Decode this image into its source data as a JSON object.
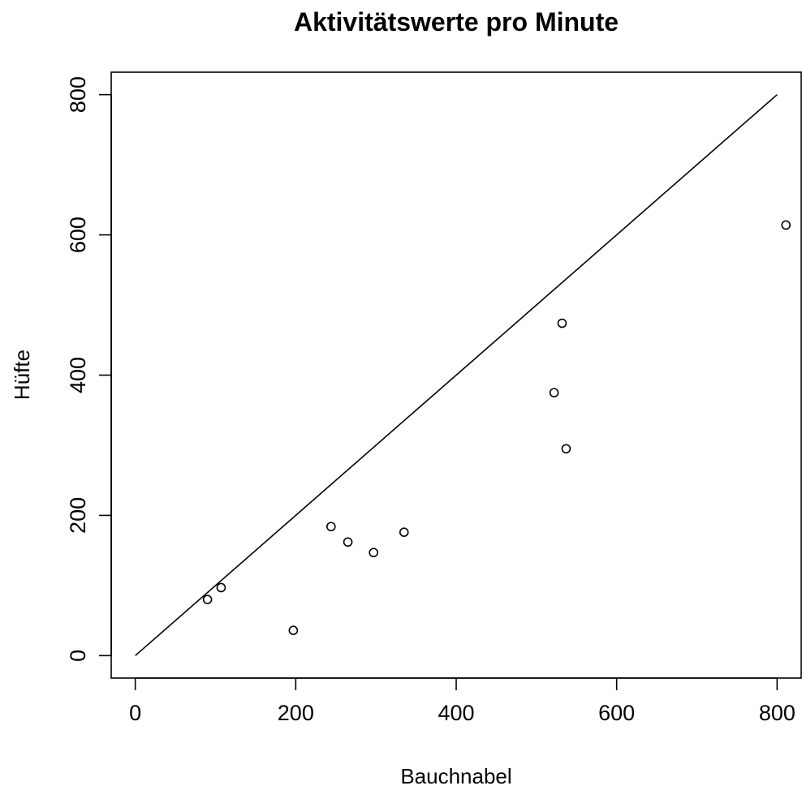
{
  "chart_data": {
    "type": "scatter",
    "title": "Aktivitätswerte pro Minute",
    "xlabel": "Bauchnabel",
    "ylabel": "Hüfte",
    "xlim": [
      -30,
      830
    ],
    "ylim": [
      -32,
      832
    ],
    "xticks": [
      0,
      200,
      400,
      600,
      800
    ],
    "yticks": [
      0,
      200,
      400,
      600,
      800
    ],
    "grid": false,
    "legend": null,
    "reference_line": {
      "from": [
        0,
        0
      ],
      "to": [
        800,
        800
      ]
    },
    "series": [
      {
        "values": [
          {
            "x": 90,
            "y": 80
          },
          {
            "x": 107,
            "y": 97
          },
          {
            "x": 197,
            "y": 36
          },
          {
            "x": 244,
            "y": 184
          },
          {
            "x": 265,
            "y": 162
          },
          {
            "x": 297,
            "y": 147
          },
          {
            "x": 335,
            "y": 176
          },
          {
            "x": 522,
            "y": 375
          },
          {
            "x": 532,
            "y": 474
          },
          {
            "x": 537,
            "y": 295
          },
          {
            "x": 811,
            "y": 614
          }
        ]
      }
    ]
  }
}
